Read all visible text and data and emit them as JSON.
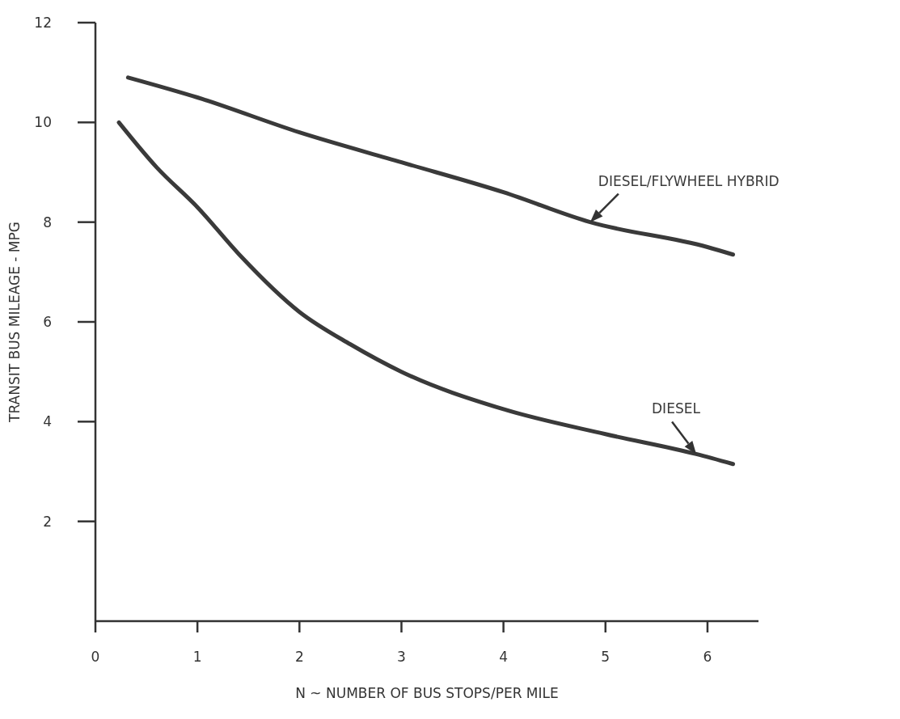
{
  "chart_data": {
    "type": "line",
    "xlabel": "N ~ NUMBER OF BUS STOPS/PER MILE",
    "ylabel": "TRANSIT BUS MILEAGE - MPG",
    "xlim": [
      0,
      6.5
    ],
    "xticks": [
      0,
      1,
      2,
      3,
      4,
      5,
      6
    ],
    "ylim": [
      0,
      12
    ],
    "yticks": [
      2,
      4,
      6,
      8,
      10,
      12
    ],
    "grid": false,
    "marker": "none",
    "line_style": "solid",
    "series": [
      {
        "name": "DIESEL/FLYWHEEL HYBRID",
        "color": "#3a3a3a",
        "x": [
          0.32,
          1,
          2,
          3,
          4,
          4.85,
          6,
          6.25
        ],
        "values": [
          10.9,
          10.5,
          9.8,
          9.2,
          8.6,
          8.0,
          7.5,
          7.35
        ]
      },
      {
        "name": "DIESEL",
        "color": "#3a3a3a",
        "x": [
          0.23,
          0.6,
          1,
          1.41,
          2,
          2.5,
          3,
          4,
          5,
          5.89,
          6.25
        ],
        "values": [
          10.0,
          9.1,
          8.3,
          7.35,
          6.2,
          5.55,
          5.0,
          4.25,
          3.75,
          3.35,
          3.15
        ]
      }
    ]
  }
}
